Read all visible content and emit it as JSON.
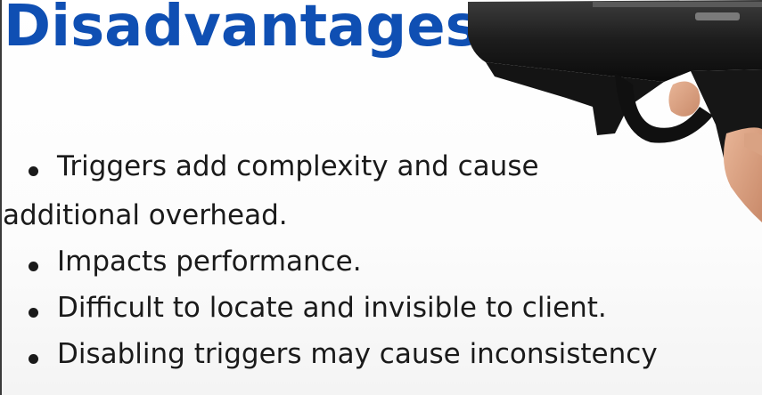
{
  "slide": {
    "title": "Disadvantages",
    "title_color": "#0f4fb3",
    "bullets": [
      {
        "text_line1": "Triggers add complexity and cause",
        "text_line2": "additional overhead."
      },
      {
        "text_line1": "Impacts performance."
      },
      {
        "text_line1": "Difficult to locate and invisible to client."
      },
      {
        "text_line1": "Disabling triggers may cause inconsistency"
      }
    ],
    "image": {
      "icon": "handgun-image"
    }
  }
}
